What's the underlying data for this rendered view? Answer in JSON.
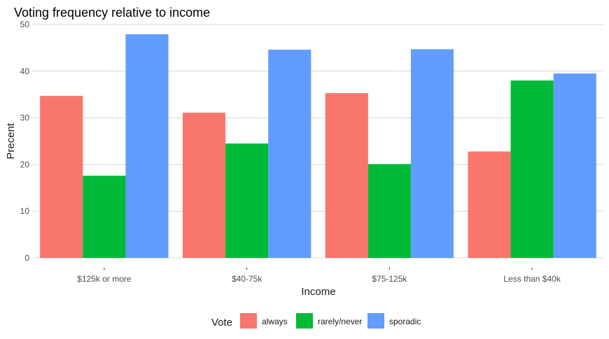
{
  "chart_data": {
    "type": "bar",
    "title": "Voting frequency relative to income",
    "xlabel": "Income",
    "ylabel": "Precent",
    "categories": [
      "$125k or more",
      "$40-75k",
      "$75-125k",
      "Less than $40k"
    ],
    "ylim": [
      0,
      50
    ],
    "yticks": [
      0,
      10,
      20,
      30,
      40,
      50
    ],
    "grid": true,
    "legend": {
      "title": "Vote",
      "position": "bottom"
    },
    "series": [
      {
        "name": "always",
        "color": "#F8766D",
        "values": [
          34.7,
          31.1,
          35.3,
          22.8
        ]
      },
      {
        "name": "rarely/never",
        "color": "#00BA38",
        "values": [
          17.6,
          24.5,
          20.1,
          38.0
        ]
      },
      {
        "name": "sporadic",
        "color": "#619CFF",
        "values": [
          47.9,
          44.6,
          44.7,
          39.5
        ]
      }
    ]
  }
}
